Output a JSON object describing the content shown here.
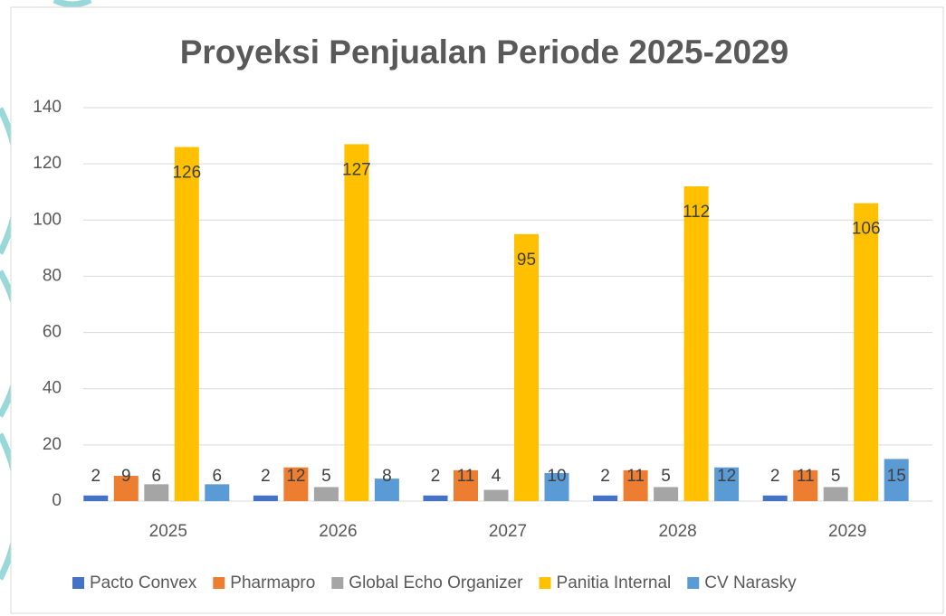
{
  "chart_data": {
    "type": "bar",
    "title": "Proyeksi Penjualan Periode 2025-2029",
    "categories": [
      "2025",
      "2026",
      "2027",
      "2028",
      "2029"
    ],
    "series": [
      {
        "name": "Pacto Convex",
        "color": "#4472c4",
        "values": [
          2,
          2,
          2,
          2,
          2
        ]
      },
      {
        "name": "Pharmapro",
        "color": "#ed7d31",
        "values": [
          9,
          12,
          11,
          11,
          11
        ]
      },
      {
        "name": "Global Echo Organizer",
        "color": "#a5a5a5",
        "values": [
          6,
          5,
          4,
          5,
          5
        ]
      },
      {
        "name": "Panitia Internal",
        "color": "#ffc000",
        "values": [
          126,
          127,
          95,
          112,
          106
        ]
      },
      {
        "name": "CV Narasky",
        "color": "#5b9bd5",
        "values": [
          6,
          8,
          10,
          12,
          15
        ]
      }
    ],
    "ylim": [
      0,
      140
    ],
    "yticks": [
      0,
      20,
      40,
      60,
      80,
      100,
      120,
      140
    ],
    "grid": true,
    "legend": "bottom"
  }
}
